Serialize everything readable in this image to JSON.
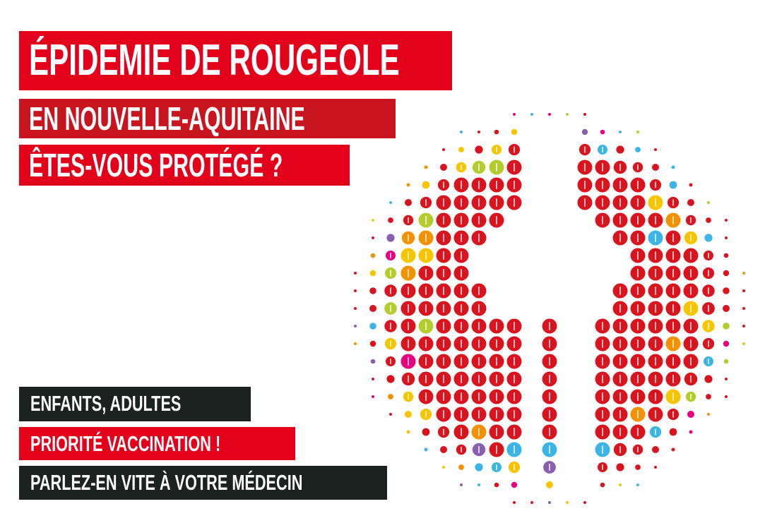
{
  "headline": {
    "line1": "ÉPIDEMIE DE ROUGEOLE",
    "line2": "EN NOUVELLE-AQUITAINE",
    "line3": "ÊTES-VOUS PROTÉGÉ ?"
  },
  "messages": {
    "line1": "ENFANTS, ADULTES",
    "line2": "PRIORITÉ VACCINATION !",
    "line3": "PARLEZ-EN VITE À VOTRE MÉDECIN"
  },
  "colors": {
    "red": "#e2001a",
    "dark_red": "#c8141e",
    "black": "#1c2220",
    "dot_red": "#d9141e",
    "dot_palette": [
      "#f39200",
      "#3cb4e5",
      "#f6c500",
      "#e6007e",
      "#8a5fb0",
      "#b5cc2e"
    ]
  },
  "illustration": {
    "icon": "person-silhouette-in-dot-circle"
  }
}
